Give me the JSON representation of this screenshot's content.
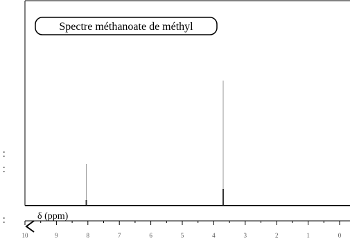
{
  "chart_data": {
    "type": "line",
    "title": "Spectre méthanoate de méthyl",
    "xlabel": "δ (ppm)",
    "ylabel": "",
    "x_reversed": true,
    "xlim": [
      10,
      0
    ],
    "ticks": [
      {
        "value": 10,
        "label": "10"
      },
      {
        "value": 9,
        "label": "9"
      },
      {
        "value": 8,
        "label": "8"
      },
      {
        "value": 7,
        "label": "7"
      },
      {
        "value": 6,
        "label": "6"
      },
      {
        "value": 5,
        "label": "5"
      },
      {
        "value": 4,
        "label": "4"
      },
      {
        "value": 3,
        "label": "3"
      },
      {
        "value": 2,
        "label": "2"
      },
      {
        "value": 1,
        "label": "1"
      },
      {
        "value": 0,
        "label": "0"
      }
    ],
    "peaks": [
      {
        "x": 8.05,
        "intensity": 1,
        "integral": 1
      },
      {
        "x": 3.7,
        "intensity": 3,
        "integral": 3
      }
    ],
    "grid": false,
    "colors": {
      "axis": "#000000",
      "peak": "#333333",
      "integral": "#999999"
    }
  }
}
